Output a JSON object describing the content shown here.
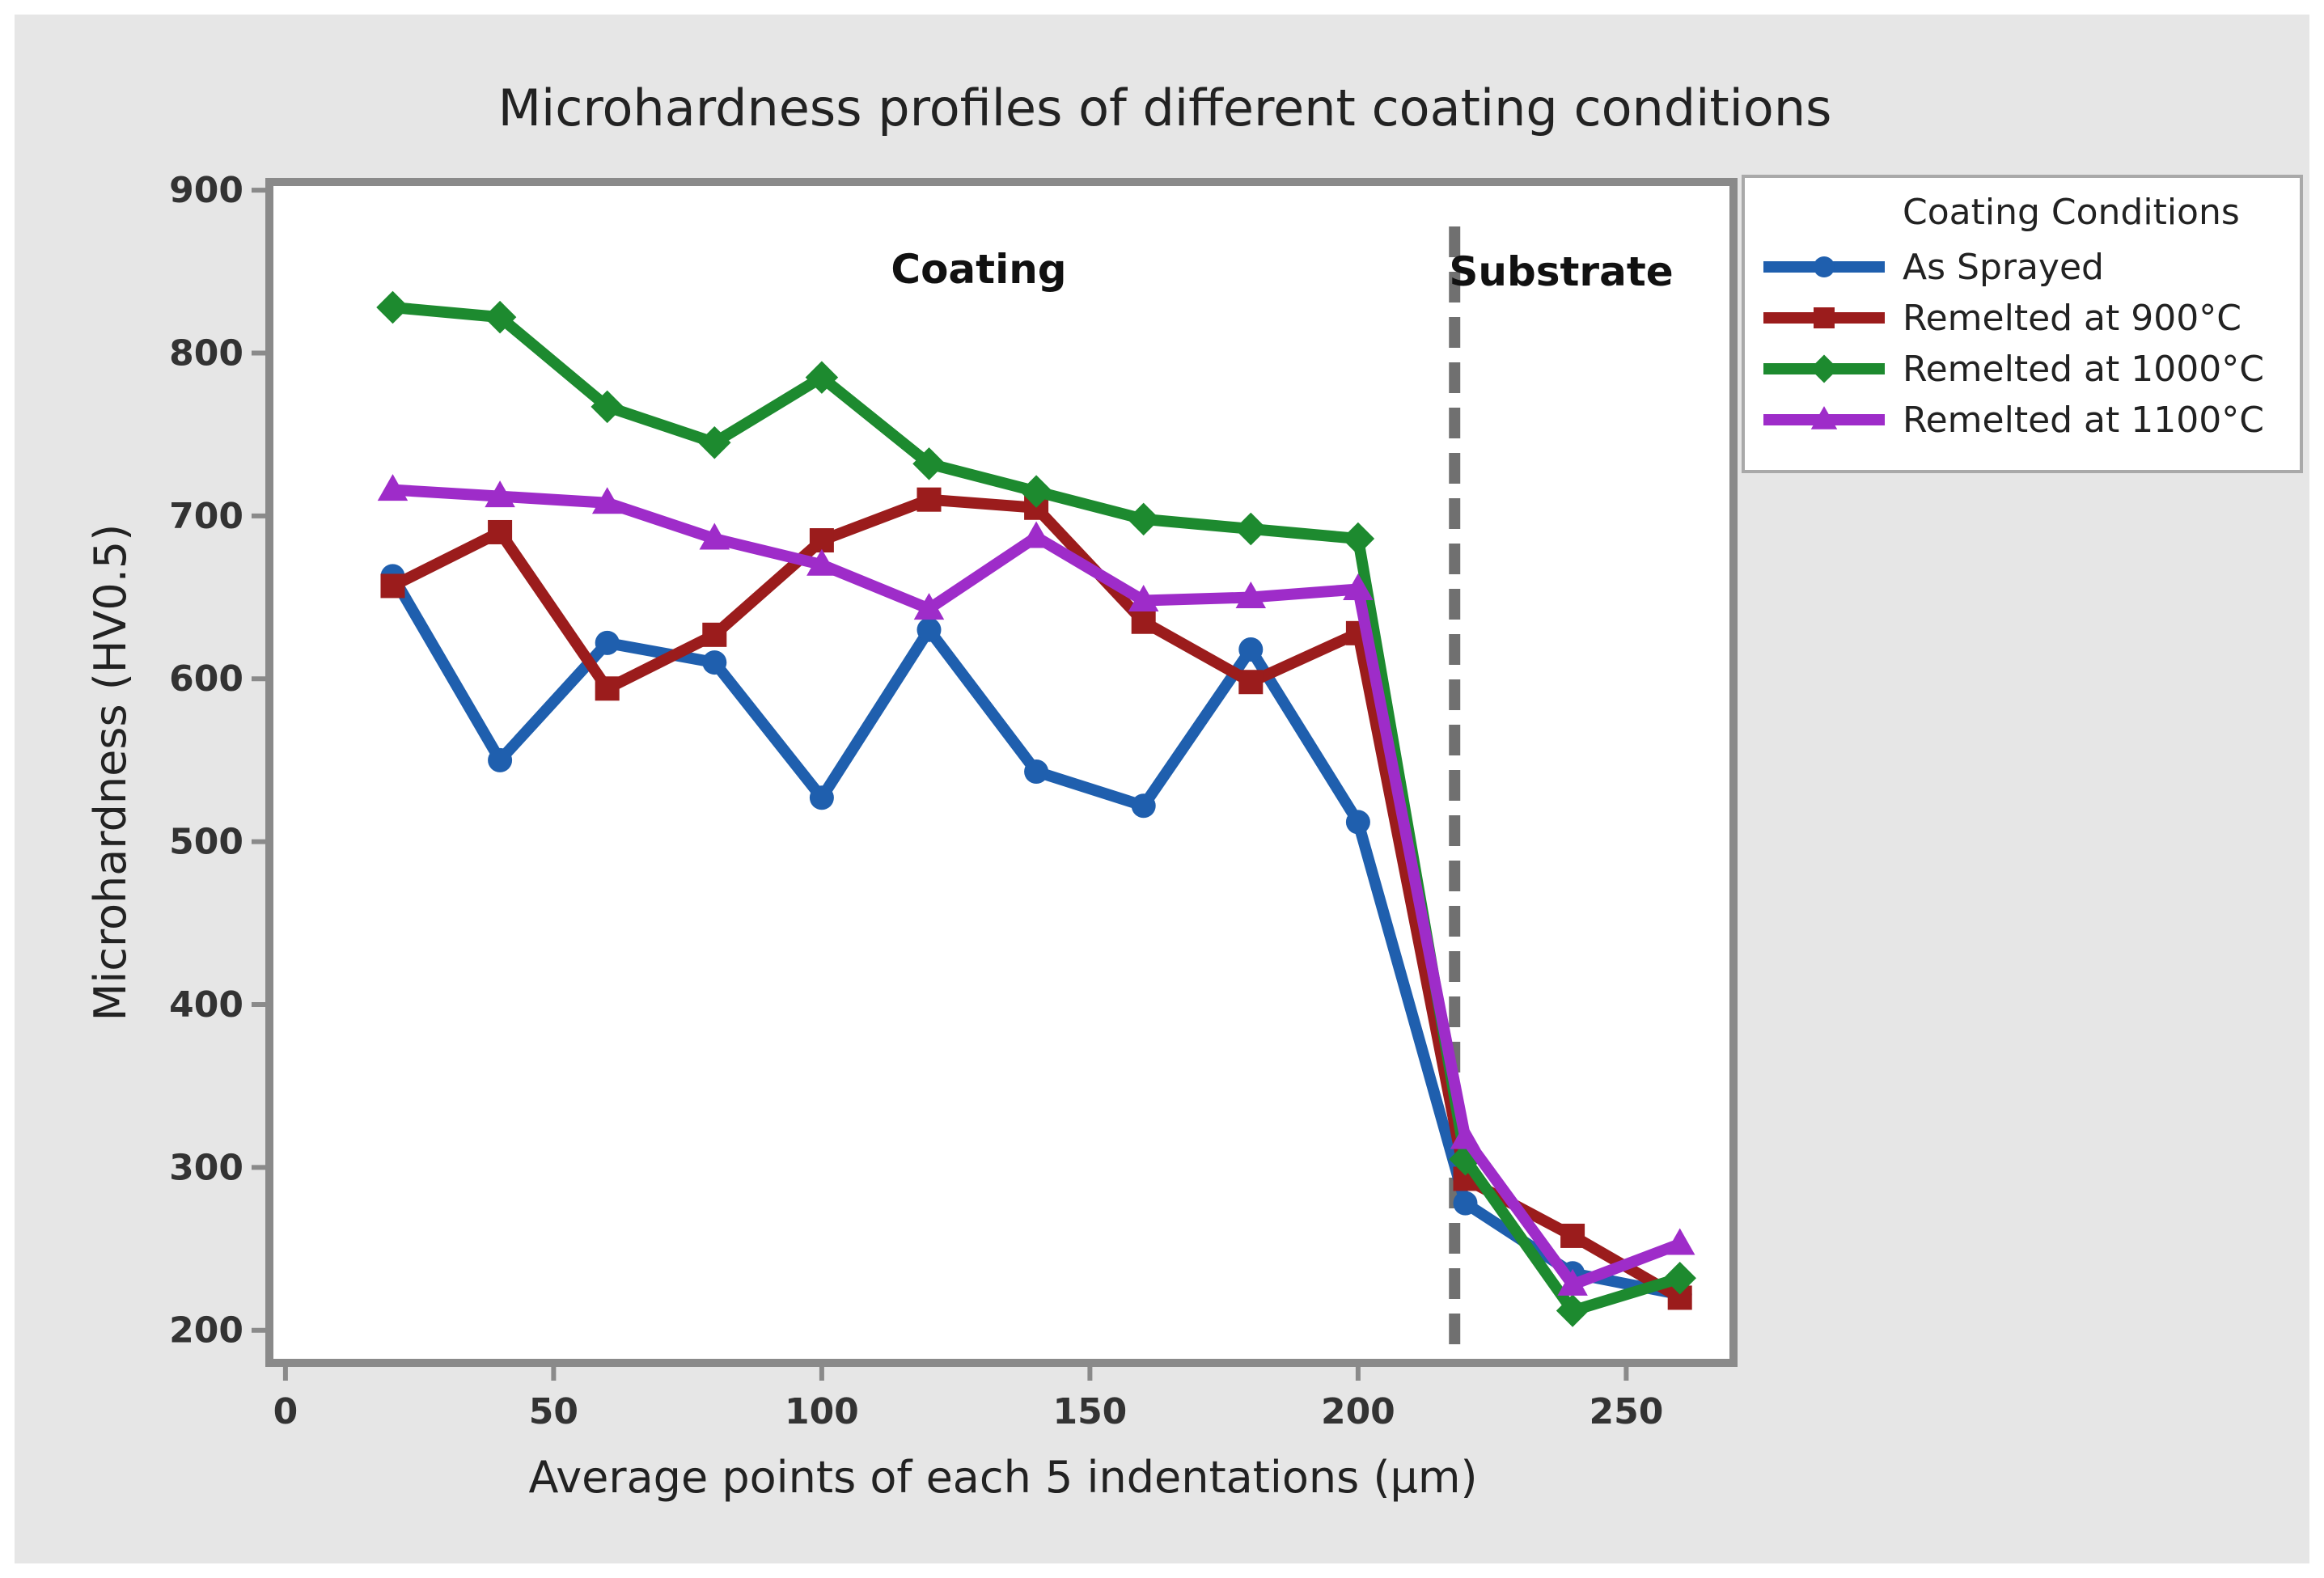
{
  "chart_data": {
    "type": "line",
    "title": "Microhardness profiles of different coating conditions",
    "xlabel": "Average points of each 5 indentations (μm)",
    "ylabel": "Microhardness (HV0.5)",
    "xlim": [
      -3,
      270
    ],
    "ylim": [
      180,
      905
    ],
    "xticks": [
      0,
      50,
      100,
      150,
      200,
      250
    ],
    "yticks": [
      200,
      300,
      400,
      500,
      600,
      700,
      800,
      900
    ],
    "x": [
      20,
      40,
      60,
      80,
      100,
      120,
      140,
      160,
      180,
      200,
      220,
      240,
      260
    ],
    "series": [
      {
        "name": "As Sprayed",
        "color": "#1f5fae",
        "marker": "circle",
        "values": [
          663,
          550,
          622,
          610,
          527,
          630,
          543,
          522,
          618,
          512,
          278,
          235,
          222
        ]
      },
      {
        "name": "Remelted at  900°C",
        "color": "#9b1c1c",
        "marker": "square",
        "values": [
          657,
          690,
          594,
          627,
          685,
          710,
          705,
          635,
          598,
          628,
          293,
          258,
          220
        ]
      },
      {
        "name": "Remelted at 1000°C",
        "color": "#1d8a2f",
        "marker": "diamond",
        "values": [
          828,
          822,
          767,
          745,
          785,
          732,
          715,
          698,
          692,
          686,
          305,
          212,
          232
        ]
      },
      {
        "name": "Remelted at 1100°C",
        "color": "#9e2cc9",
        "marker": "triangle",
        "values": [
          716,
          712,
          708,
          686,
          670,
          643,
          687,
          648,
          650,
          655,
          318,
          228,
          253
        ]
      }
    ],
    "annotations": {
      "coating_label": "Coating",
      "substrate_label": "Substrate",
      "boundary_x": 218
    },
    "legend": {
      "title": "Coating Conditions",
      "placement": "right-outside"
    },
    "grid": false
  }
}
